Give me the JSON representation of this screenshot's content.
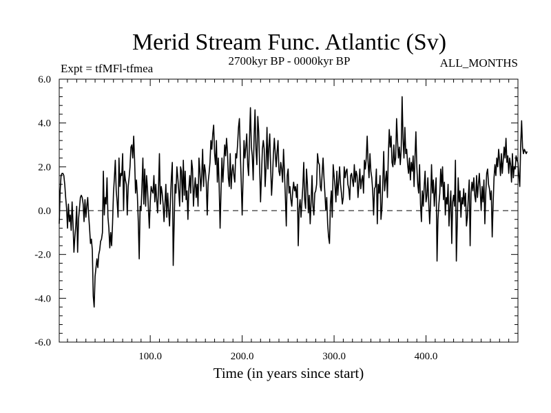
{
  "chart_data": {
    "type": "line",
    "title": "Merid Stream Func. Atlantic (Sv)",
    "subtitle_left": "Expt = tfMFl-tfmea",
    "subtitle_center": "2700kyr BP - 0000kyr BP",
    "subtitle_right": "ALL_MONTHS",
    "xlabel": "Time (in years since start)",
    "ylabel": "",
    "xlim": [
      1,
      500
    ],
    "ylim": [
      -6,
      6
    ],
    "x_ticks": [
      100,
      200,
      300,
      400
    ],
    "x_tick_labels": [
      "100.0",
      "200.0",
      "300.0",
      "400.0"
    ],
    "y_ticks": [
      -6,
      -4,
      -2,
      0,
      2,
      4,
      6
    ],
    "y_tick_labels": [
      "-6.0",
      "-4.0",
      "-2.0",
      "0.0",
      "2.0",
      "4.0",
      "6.0"
    ],
    "reference_line": {
      "y": 0,
      "style": "dashed"
    },
    "grid": false,
    "series": [
      {
        "name": "Merid Stream Func. Atlantic",
        "x_start": 1,
        "x_step": 1,
        "values": [
          -0.6,
          0.9,
          1.6,
          1.7,
          1.7,
          1.6,
          1.2,
          0.6,
          0.1,
          -0.8,
          0.3,
          -0.5,
          -0.2,
          -0.9,
          0.4,
          -0.6,
          -1.9,
          -1.2,
          -0.7,
          0.2,
          -1.9,
          -0.4,
          0.1,
          0.6,
          0.7,
          0.6,
          0.3,
          -0.5,
          0.5,
          -0.3,
          0.2,
          0.6,
          -0.2,
          -0.8,
          -1.5,
          -1.3,
          -1.8,
          -3.9,
          -4.4,
          -3.0,
          -2.6,
          -2.2,
          -2.6,
          -2.0,
          -1.8,
          -1.4,
          -1.3,
          -1.0,
          1.8,
          -0.2,
          0.6,
          0.3,
          1.5,
          -0.3,
          -0.8,
          -1.7,
          -1.0,
          -1.6,
          -0.6,
          0.8,
          1.5,
          2.3,
          0.9,
          0.4,
          -0.3,
          2.4,
          1.1,
          1.7,
          1.6,
          2.6,
          0.0,
          1.8,
          1.4,
          1.2,
          -0.2,
          1.1,
          1.5,
          2.0,
          2.9,
          3.0,
          2.4,
          3.4,
          2.3,
          0.8,
          1.4,
          0.7,
          -0.5,
          -2.2,
          0.2,
          0.0,
          1.1,
          2.4,
          0.3,
          1.9,
          0.2,
          1.6,
          1.0,
          0.1,
          -0.8,
          0.4,
          1.1,
          0.9,
          0.8,
          1.6,
          0.4,
          1.2,
          0.5,
          -0.1,
          1.0,
          2.6,
          0.3,
          1.1,
          0.8,
          0.3,
          -0.5,
          0.3,
          1.2,
          -0.3,
          0.8,
          0.0,
          -0.7,
          0.5,
          1.5,
          2.2,
          -2.5,
          -0.6,
          1.2,
          0.8,
          2.0,
          1.5,
          0.9,
          0.2,
          2.0,
          1.8,
          0.4,
          2.3,
          0.7,
          1.8,
          0.5,
          0.9,
          -0.4,
          1.0,
          1.6,
          0.8,
          2.3,
          1.9,
          0.2,
          1.0,
          1.5,
          0.6,
          1.2,
          0.2,
          2.4,
          1.8,
          0.9,
          1.6,
          2.8,
          1.1,
          2.1,
          1.8,
          1.2,
          -0.2,
          1.3,
          1.7,
          2.2,
          3.2,
          2.8,
          3.5,
          3.9,
          2.6,
          2.1,
          3.2,
          1.3,
          2.4,
          1.1,
          -0.8,
          0.9,
          2.4,
          1.3,
          2.1,
          3.0,
          2.5,
          3.3,
          2.7,
          1.5,
          1.1,
          2.6,
          1.0,
          1.8,
          2.1,
          1.6,
          1.3,
          2.6,
          2.4,
          3.0,
          3.8,
          4.2,
          2.6,
          1.3,
          -0.2,
          1.5,
          3.2,
          2.4,
          2.9,
          3.5,
          2.1,
          1.6,
          3.3,
          4.7,
          2.9,
          2.5,
          1.4,
          3.4,
          4.6,
          2.8,
          2.1,
          4.3,
          3.6,
          2.0,
          0.4,
          1.6,
          2.8,
          3.2,
          2.8,
          1.1,
          2.0,
          3.8,
          1.9,
          2.9,
          3.5,
          2.0,
          0.7,
          1.5,
          2.6,
          3.3,
          2.6,
          2.0,
          2.7,
          3.2,
          1.8,
          1.6,
          2.2,
          1.9,
          1.3,
          2.8,
          1.8,
          0.6,
          -0.7,
          1.6,
          1.9,
          0.8,
          1.1,
          0.5,
          0.2,
          0.9,
          1.3,
          0.9,
          1.1,
          0.6,
          1.2,
          -1.6,
          0.1,
          0.5,
          -0.3,
          0.4,
          1.1,
          2.2,
          0.5,
          0.1,
          1.9,
          1.2,
          -0.1,
          0.7,
          -0.6,
          0.4,
          1.6,
          0.2,
          -0.2,
          0.8,
          0.9,
          1.2,
          2.6,
          2.2,
          2.1,
          1.1,
          0.9,
          1.7,
          2.4,
          1.5,
          0.8,
          0.0,
          0.6,
          -0.6,
          -1.2,
          -1.5,
          0.3,
          0.9,
          -0.3,
          2.1,
          1.6,
          1.1,
          0.4,
          1.8,
          0.7,
          1.3,
          2.0,
          1.2,
          0.8,
          0.3,
          0.6,
          2.0,
          1.5,
          1.8,
          1.9,
          1.2,
          1.0,
          0.5,
          1.6,
          1.7,
          1.4,
          1.1,
          2.1,
          1.3,
          1.8,
          1.6,
          0.6,
          1.2,
          1.9,
          1.0,
          1.4,
          1.6,
          0.8,
          2.3,
          1.9,
          2.4,
          3.4,
          2.2,
          1.5,
          2.6,
          1.8,
          1.5,
          0.9,
          -0.2,
          1.0,
          1.1,
          1.9,
          -0.6,
          1.2,
          0.8,
          1.6,
          -0.4,
          0.1,
          1.3,
          2.7,
          0.9,
          1.4,
          1.8,
          0.6,
          2.5,
          3.7,
          2.9,
          3.4,
          2.2,
          2.0,
          3.0,
          2.1,
          2.4,
          4.2,
          3.2,
          2.4,
          2.9,
          2.1,
          2.8,
          5.2,
          3.3,
          2.4,
          3.8,
          2.6,
          2.8,
          2.1,
          1.7,
          2.4,
          1.4,
          2.2,
          1.8,
          2.5,
          1.1,
          2.4,
          3.6,
          2.0,
          1.2,
          0.8,
          2.1,
          0.3,
          -0.5,
          0.9,
          0.2,
          1.1,
          1.8,
          0.4,
          0.7,
          1.5,
          0.3,
          -0.6,
          0.4,
          2.1,
          0.8,
          1.4,
          0.2,
          0.9,
          1.5,
          -2.3,
          -0.4,
          0.3,
          0.8,
          1.9,
          1.1,
          2.0,
          0.5,
          1.3,
          -0.2,
          0.6,
          0.3,
          1.2,
          -0.7,
          0.2,
          0.9,
          -1.5,
          0.4,
          0.7,
          0.2,
          2.3,
          -2.3,
          -0.6,
          1.5,
          0.4,
          0.9,
          -0.3,
          0.6,
          0.3,
          1.0,
          0.2,
          0.8,
          -0.7,
          -0.3,
          0.6,
          1.4,
          -1.6,
          0.8,
          1.3,
          0.9,
          1.5,
          0.7,
          0.4,
          1.6,
          0.6,
          1.2,
          1.7,
          0.9,
          0.0,
          1.1,
          0.4,
          1.4,
          -0.6,
          0.8,
          1.7,
          1.9,
          1.2,
          1.0,
          0.5,
          0.9,
          -1.2,
          0.3,
          1.5,
          2.1,
          1.6,
          2.4,
          2.0,
          2.8,
          2.3,
          1.6,
          2.6,
          1.7,
          2.3,
          2.9,
          2.4,
          3.3,
          2.2,
          2.5,
          1.7,
          2.4,
          2.1,
          1.3,
          2.6,
          1.5,
          2.0,
          1.9,
          2.5,
          2.3,
          2.2,
          1.6,
          1.1,
          3.0,
          4.1,
          2.9,
          2.6,
          2.8,
          2.7,
          2.6,
          2.7
        ]
      }
    ]
  }
}
